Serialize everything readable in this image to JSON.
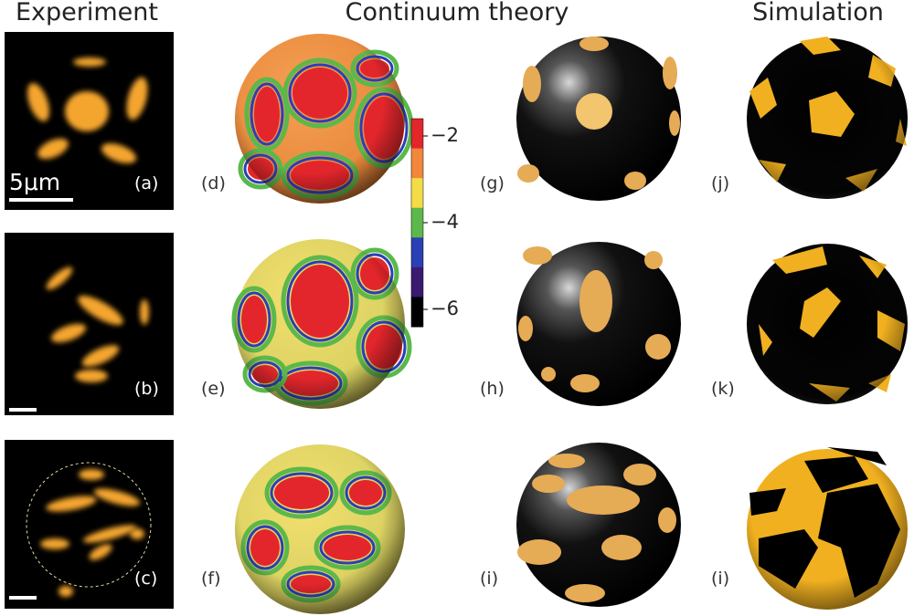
{
  "columns": [
    "Experiment",
    "Continuum theory",
    "Simulation"
  ],
  "scale_bar": "5μm",
  "panels": [
    "(a)",
    "(b)",
    "(c)",
    "(d)",
    "(e)",
    "(f)",
    "(g)",
    "(h)",
    "(i)",
    "(j)",
    "(k)",
    "(i)"
  ],
  "colorbar": {
    "lim": [
      -6.4,
      -1.6
    ],
    "ticks": [
      {
        "value": -2,
        "label": "−2"
      },
      {
        "value": -4,
        "label": "−4"
      },
      {
        "value": -6,
        "label": "−6"
      }
    ],
    "colors": [
      "#e3262c",
      "#f0873a",
      "#f3dc45",
      "#5bb84a",
      "#2b40b5",
      "#3b1a70",
      "#000000"
    ]
  }
}
